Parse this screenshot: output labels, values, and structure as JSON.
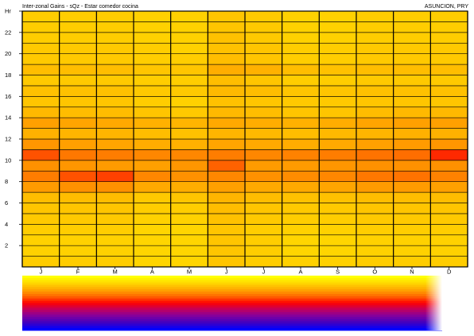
{
  "header": {
    "title": "Inter-zonal Gains - sQz - Estar comedor cocina",
    "location": "ASUNCION, PRY"
  },
  "chart_data": {
    "type": "heatmap",
    "title": "Inter-zonal Gains - sQz - Estar comedor cocina",
    "subtitle": "ASUNCION, PRY",
    "xlabel": "",
    "ylabel": "Hr",
    "x_categories": [
      "J",
      "F",
      "M",
      "A",
      "M",
      "J",
      "J",
      "A",
      "S",
      "O",
      "N",
      "D"
    ],
    "y_hours": [
      1,
      2,
      3,
      4,
      5,
      6,
      7,
      8,
      9,
      10,
      11,
      12,
      13,
      14,
      15,
      16,
      17,
      18,
      19,
      20,
      21,
      22,
      23,
      24
    ],
    "y_tick_labels": [
      "2",
      "4",
      "6",
      "8",
      "10",
      "12",
      "14",
      "16",
      "18",
      "20",
      "22",
      "Hr"
    ],
    "value_range": [
      0,
      1
    ],
    "color_scale": [
      "#ffff00",
      "#ffd700",
      "#ffa500",
      "#ff6600",
      "#ff0000",
      "#c00060",
      "#8000a0",
      "#4000c0",
      "#0000ff"
    ],
    "values": [
      [
        0.15,
        0.15,
        0.15,
        0.13,
        0.13,
        0.17,
        0.15,
        0.14,
        0.14,
        0.15,
        0.15,
        0.15
      ],
      [
        0.14,
        0.14,
        0.14,
        0.13,
        0.13,
        0.17,
        0.15,
        0.13,
        0.13,
        0.14,
        0.14,
        0.14
      ],
      [
        0.14,
        0.14,
        0.14,
        0.13,
        0.13,
        0.17,
        0.15,
        0.13,
        0.13,
        0.14,
        0.14,
        0.14
      ],
      [
        0.15,
        0.15,
        0.15,
        0.13,
        0.13,
        0.17,
        0.15,
        0.14,
        0.14,
        0.15,
        0.15,
        0.15
      ],
      [
        0.16,
        0.16,
        0.16,
        0.14,
        0.14,
        0.18,
        0.16,
        0.15,
        0.15,
        0.16,
        0.16,
        0.16
      ],
      [
        0.17,
        0.17,
        0.17,
        0.15,
        0.15,
        0.19,
        0.17,
        0.16,
        0.16,
        0.17,
        0.17,
        0.17
      ],
      [
        0.19,
        0.19,
        0.19,
        0.16,
        0.17,
        0.21,
        0.19,
        0.18,
        0.18,
        0.19,
        0.19,
        0.19
      ],
      [
        0.27,
        0.29,
        0.29,
        0.24,
        0.23,
        0.26,
        0.24,
        0.24,
        0.25,
        0.27,
        0.27,
        0.26
      ],
      [
        0.33,
        0.4,
        0.42,
        0.31,
        0.29,
        0.31,
        0.29,
        0.3,
        0.31,
        0.34,
        0.35,
        0.32
      ],
      [
        0.29,
        0.28,
        0.27,
        0.26,
        0.28,
        0.38,
        0.27,
        0.27,
        0.28,
        0.29,
        0.29,
        0.29
      ],
      [
        0.4,
        0.34,
        0.33,
        0.31,
        0.31,
        0.33,
        0.31,
        0.32,
        0.33,
        0.35,
        0.36,
        0.45
      ],
      [
        0.28,
        0.26,
        0.25,
        0.23,
        0.22,
        0.25,
        0.24,
        0.23,
        0.24,
        0.26,
        0.27,
        0.28
      ],
      [
        0.22,
        0.21,
        0.21,
        0.19,
        0.18,
        0.21,
        0.2,
        0.19,
        0.2,
        0.21,
        0.22,
        0.22
      ],
      [
        0.26,
        0.25,
        0.24,
        0.22,
        0.21,
        0.24,
        0.23,
        0.22,
        0.23,
        0.25,
        0.26,
        0.26
      ],
      [
        0.2,
        0.19,
        0.19,
        0.17,
        0.16,
        0.2,
        0.19,
        0.17,
        0.17,
        0.19,
        0.2,
        0.2
      ],
      [
        0.17,
        0.17,
        0.17,
        0.15,
        0.14,
        0.18,
        0.17,
        0.16,
        0.16,
        0.17,
        0.17,
        0.17
      ],
      [
        0.18,
        0.18,
        0.18,
        0.16,
        0.16,
        0.2,
        0.19,
        0.17,
        0.17,
        0.18,
        0.18,
        0.18
      ],
      [
        0.16,
        0.16,
        0.16,
        0.15,
        0.15,
        0.19,
        0.17,
        0.15,
        0.15,
        0.16,
        0.16,
        0.16
      ],
      [
        0.19,
        0.19,
        0.19,
        0.17,
        0.17,
        0.23,
        0.22,
        0.19,
        0.18,
        0.19,
        0.19,
        0.19
      ],
      [
        0.16,
        0.16,
        0.16,
        0.15,
        0.15,
        0.19,
        0.17,
        0.15,
        0.15,
        0.16,
        0.16,
        0.16
      ],
      [
        0.16,
        0.16,
        0.16,
        0.15,
        0.14,
        0.18,
        0.17,
        0.15,
        0.15,
        0.16,
        0.16,
        0.16
      ],
      [
        0.15,
        0.15,
        0.15,
        0.14,
        0.14,
        0.18,
        0.16,
        0.14,
        0.14,
        0.15,
        0.15,
        0.15
      ],
      [
        0.15,
        0.15,
        0.15,
        0.14,
        0.14,
        0.17,
        0.16,
        0.14,
        0.14,
        0.15,
        0.15,
        0.15
      ],
      [
        0.15,
        0.15,
        0.15,
        0.14,
        0.14,
        0.17,
        0.16,
        0.14,
        0.14,
        0.15,
        0.15,
        0.15
      ]
    ],
    "grid": true,
    "legend": "bottom"
  }
}
